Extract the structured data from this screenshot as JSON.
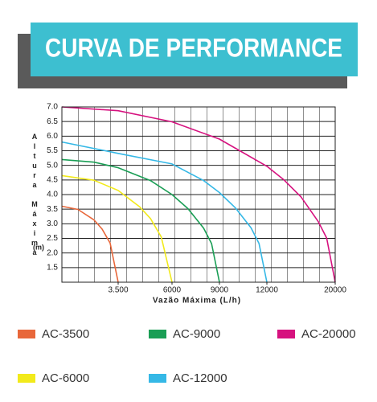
{
  "chart_data": {
    "type": "line",
    "title": "CURVA DE PERFORMANCE",
    "x_label": "Vazão Máxima (L/h)",
    "y_label": "Altura Máxima",
    "y_label_unit": "(m)",
    "xlim": [
      0,
      20000
    ],
    "xticks": [
      {
        "value": 3500,
        "label": "3.500"
      },
      6000,
      9000,
      12000,
      20000
    ],
    "ylim": [
      1,
      7
    ],
    "yticks": [
      {
        "value": 7,
        "label": "7.0"
      },
      6.5,
      {
        "value": 6,
        "label": "6.0"
      },
      5.5,
      {
        "value": 5,
        "label": "5.0"
      },
      4.5,
      {
        "value": 4,
        "label": "4.0"
      },
      3.5,
      {
        "value": 3,
        "label": "3.0"
      },
      2.5,
      {
        "value": 2,
        "label": "2.0"
      },
      1.5
    ],
    "grid": true,
    "series": [
      {
        "name": "AC-3500",
        "color": "#e8673a",
        "x": [
          0,
          1000,
          2000,
          2500,
          3000,
          3500
        ],
        "values": [
          3.6,
          3.49,
          3.13,
          2.82,
          2.34,
          1.0
        ]
      },
      {
        "name": "AC-6000",
        "color": "#f2ea1b",
        "x": [
          0,
          2000,
          3500,
          4500,
          5000,
          5500,
          6000
        ],
        "values": [
          4.65,
          4.49,
          4.14,
          3.58,
          3.18,
          2.55,
          1.0
        ]
      },
      {
        "name": "AC-9000",
        "color": "#1a9e55",
        "x": [
          0,
          2000,
          3500,
          5000,
          6000,
          7000,
          8000,
          8500,
          9000
        ],
        "values": [
          5.2,
          5.11,
          4.92,
          4.48,
          4.0,
          3.52,
          2.85,
          2.32,
          1.0
        ]
      },
      {
        "name": "AC-12000",
        "color": "#35b8e6",
        "x": [
          0,
          3500,
          6000,
          8000,
          9000,
          10000,
          11000,
          11500,
          12000
        ],
        "values": [
          5.8,
          5.41,
          5.05,
          4.48,
          4.07,
          3.55,
          2.86,
          2.33,
          1.0
        ]
      },
      {
        "name": "AC-20000",
        "color": "#d6127f",
        "x": [
          0,
          3500,
          6000,
          9000,
          12000,
          14000,
          16000,
          18000,
          19000,
          20000
        ],
        "values": [
          7.0,
          6.87,
          6.49,
          5.9,
          4.97,
          4.5,
          3.92,
          3.08,
          2.51,
          1.0
        ]
      }
    ]
  }
}
